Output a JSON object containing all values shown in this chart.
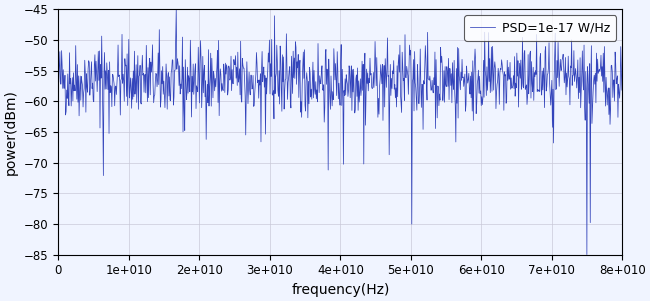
{
  "xlabel": "frequency(Hz)",
  "ylabel": "power(dBm)",
  "xlim": [
    0,
    80000000000.0
  ],
  "ylim": [
    -85,
    -45
  ],
  "yticks": [
    -85,
    -80,
    -75,
    -70,
    -65,
    -60,
    -55,
    -50,
    -45
  ],
  "xticks": [
    0,
    10000000000.0,
    20000000000.0,
    30000000000.0,
    40000000000.0,
    50000000000.0,
    60000000000.0,
    70000000000.0,
    80000000000.0
  ],
  "xtick_labels": [
    "0",
    "1e+010",
    "2e+010",
    "3e+010",
    "4e+010",
    "5e+010",
    "6e+010",
    "7e+010",
    "8e+010"
  ],
  "legend_label": "PSD=1e-17 W/Hz",
  "line_color": "#3344bb",
  "num_points": 1000,
  "seed": 42,
  "noise_mean": -56.5,
  "noise_std": 3.0,
  "background_color": "#f0f4ff",
  "grid_color": "#c8c8d8",
  "figsize": [
    6.5,
    3.01
  ],
  "dpi": 100
}
